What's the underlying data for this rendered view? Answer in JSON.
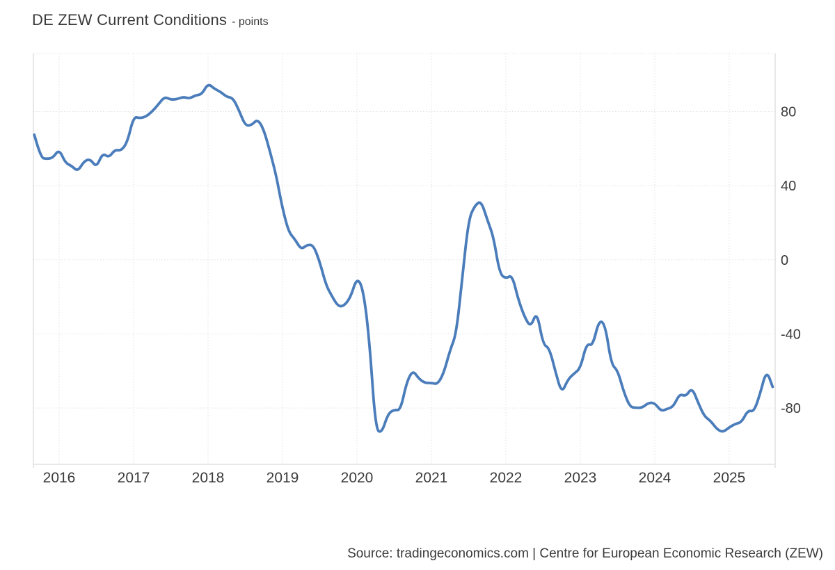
{
  "header": {
    "title": "DE ZEW Current Conditions",
    "subtitle": "- points"
  },
  "footer": {
    "source": "Source: tradingeconomics.com | Centre for European Economic Research (ZEW)"
  },
  "chart_data": {
    "type": "line",
    "title": "DE ZEW Current Conditions",
    "unit": "points",
    "series_name": "DE ZEW Current Conditions",
    "frequency": "monthly",
    "start": "2015-09",
    "end": "2025-08",
    "x_tick_labels": [
      "2016",
      "2017",
      "2018",
      "2019",
      "2020",
      "2021",
      "2022",
      "2023",
      "2024",
      "2025"
    ],
    "y_tick_labels": [
      "80",
      "40",
      "0",
      "-40",
      "-80"
    ],
    "y_tick_values": [
      80,
      40,
      0,
      -40,
      -80
    ],
    "ylim": [
      -110,
      111
    ],
    "grid": true,
    "legend": false,
    "line_color": "#4b7dbb",
    "grid_color": "#e2e2e2",
    "border_color": "#e0e0e0",
    "label_color": "#3a3a3a",
    "values": [
      67.5,
      55.2,
      54.4,
      55.0,
      59.7,
      52.3,
      50.7,
      47.7,
      53.1,
      54.5,
      49.8,
      57.6,
      55.1,
      59.5,
      58.8,
      63.5,
      77.3,
      76.4,
      77.3,
      80.1,
      83.9,
      88.0,
      86.4,
      86.7,
      87.9,
      87.0,
      88.8,
      89.3,
      95.2,
      92.3,
      90.7,
      87.9,
      87.4,
      80.6,
      72.4,
      72.6,
      76.0,
      70.1,
      58.2,
      45.3,
      27.6,
      15.0,
      11.1,
      5.5,
      8.2,
      7.8,
      -1.1,
      -13.5,
      -19.9,
      -25.3,
      -24.7,
      -19.9,
      -9.5,
      -15.7,
      -43.1,
      -91.5,
      -93.5,
      -83.1,
      -80.9,
      -81.3,
      -66.2,
      -59.5,
      -64.3,
      -66.5,
      -66.4,
      -67.2,
      -61.0,
      -48.8,
      -40.1,
      -9.1,
      21.9,
      29.3,
      31.9,
      21.6,
      12.5,
      -7.4,
      -10.2,
      -8.1,
      -21.4,
      -30.8,
      -36.5,
      -27.6,
      -45.8,
      -47.6,
      -60.5,
      -72.2,
      -64.5,
      -61.4,
      -58.6,
      -45.1,
      -46.5,
      -32.5,
      -34.8,
      -56.5,
      -59.5,
      -71.3,
      -79.4,
      -79.9,
      -79.8,
      -77.1,
      -77.3,
      -81.7,
      -80.5,
      -79.2,
      -72.3,
      -73.8,
      -68.9,
      -77.3,
      -84.5,
      -86.9,
      -91.4,
      -93.1,
      -90.4,
      -88.5,
      -87.6,
      -81.2,
      -82.0,
      -72.0,
      -59.5,
      -68.6
    ]
  }
}
